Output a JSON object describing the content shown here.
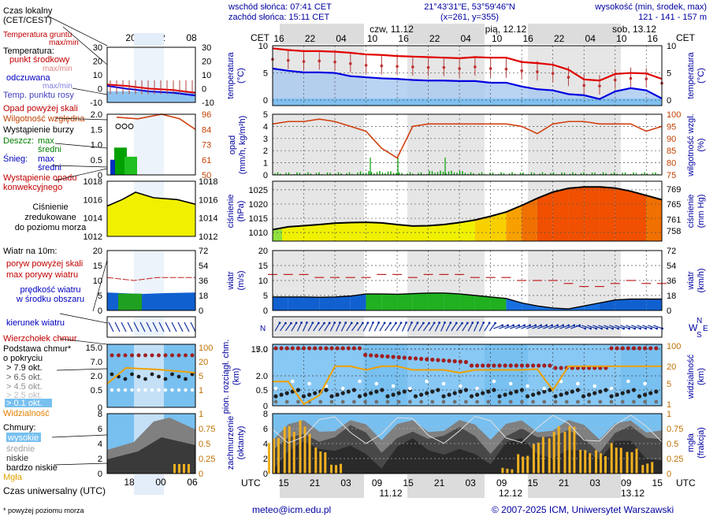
{
  "header": {
    "sunrise": "wschód słońca: 07:41 CET",
    "sunset": "zachód słońca: 15:11 CET",
    "coords": "21°43'31\"E, 53°59'46\"N",
    "grid": "(x=261, y=355)",
    "altitude_label": "wysokość (min, środek, max)",
    "altitude_values": "121 - 141 - 157 m",
    "cet_left": "CET",
    "cet_right": "CET"
  },
  "top_axis": {
    "hours": [
      "16",
      "22",
      "04",
      "10",
      "16",
      "22",
      "04",
      "10",
      "16",
      "22",
      "04",
      "10",
      "16"
    ],
    "days": [
      "czw, 11.12",
      "pią, 12.12",
      "sob, 13.12"
    ]
  },
  "bottom_axis": {
    "utc_left": "UTC",
    "utc_right": "UTC",
    "hours": [
      "15",
      "21",
      "03",
      "09",
      "15",
      "21",
      "03",
      "09",
      "15",
      "21",
      "03",
      "09",
      "15"
    ],
    "days": [
      "11.12",
      "12.12",
      "13.12"
    ]
  },
  "legend": {
    "local_time": "Czas lokalny\n(CET/CEST)",
    "local_hours": [
      "20",
      "02",
      "08"
    ],
    "utc_time": "Czas uniwersalny (UTC)",
    "utc_hours": [
      "18",
      "00",
      "06"
    ],
    "temp": {
      "ground": "Temperatura gruntu",
      "maxmin_top": "max/min",
      "temperature": "Temperatura:",
      "mid_point": "punkt środkowy",
      "maxmin": "max/min",
      "perceived": "odczuwana",
      "maxmin2": "max/min",
      "dewpoint": "Temp. punktu rosy",
      "ticks_left": [
        "30",
        "20",
        "10",
        "0",
        "-10"
      ],
      "ticks_right": [
        "30",
        "20",
        "10",
        "0",
        "-10"
      ]
    },
    "precip": {
      "above_scale": "Opad powyżej skali",
      "humidity": "Wilgotność względna",
      "storm": "Wystąpienie burzy",
      "rain": "Deszcz:",
      "max": "max",
      "mean": "średni",
      "snow": "Śnieg:",
      "max2": "max",
      "mean2": "średni",
      "occurrence": "Wystąpienie opadu\nkonwekcyjnego",
      "ticks_left": [
        "2.0",
        "1.5",
        "1.0",
        "0.5",
        "0"
      ],
      "ticks_right": [
        "96",
        "84",
        "73",
        "61",
        "50"
      ]
    },
    "pressure": {
      "label": "Ciśnienie\nzredukowane\ndo poziomu morza",
      "ticks_left": [
        "1018",
        "1016",
        "1014",
        "1012"
      ],
      "ticks_right": [
        "1018",
        "1016",
        "1014",
        "1012"
      ]
    },
    "wind": {
      "label": "Wiatr na 10m:",
      "gust_above": "poryw powyżej skali",
      "gust_max": "max porywy wiatru",
      "speed": "prędkość wiatru\nw środku obszaru",
      "ticks_left": [
        "20",
        "15",
        "10",
        "5",
        "0"
      ],
      "ticks_right": [
        "72",
        "54",
        "36",
        "18",
        "0"
      ]
    },
    "wind_dir": {
      "label": "kierunek wiatru",
      "top": "Wierzchołek chmur"
    },
    "cloud_base": {
      "label": "Podstawa chmur*\no pokryciu",
      "o79": "> 7.9 okt.",
      "o65": "> 6.5 okt.",
      "o45": "> 4.5 okt.",
      "o25": "> 2.5 okt.",
      "o01": "> 0.1 okt.",
      "visibility": "Widzialność",
      "ticks_left": [
        "15.0",
        "7.0",
        "2.0",
        "0.5",
        "0"
      ],
      "ticks_right": [
        "100",
        "20",
        "5",
        "1"
      ]
    },
    "clouds": {
      "label": "Chmury:",
      "high": "wysokie",
      "middle": "średnie",
      "low": "niskie",
      "very_low": "bardzo niskie",
      "fog": "Mgła",
      "ticks_left": [
        "8",
        "6",
        "4",
        "2",
        "0"
      ],
      "ticks_right": [
        "1",
        "0.75",
        "0.5",
        "0.25",
        "0"
      ]
    },
    "footnote": "* powyżej poziomu morza"
  },
  "panels": {
    "temp": {
      "ylabel": "temperatura\n(°C)",
      "ylabel_r": "temperatura\n(°C)",
      "ticks": [
        "10",
        "5",
        "0"
      ]
    },
    "precip": {
      "ylabel": "opad\n(mm/h, kg/m²h)",
      "ylabel_r": "wilgotność wzgl.\n(%)",
      "ticks_left": [
        "5",
        "4",
        "3",
        "2",
        "1",
        "0"
      ],
      "ticks_right": [
        "100",
        "95",
        "90",
        "85",
        "80",
        "75"
      ]
    },
    "pressure": {
      "ylabel": "ciśnienie\n(hPa)",
      "ylabel_r": "ciśnienie\n(mm Hg)",
      "ticks_left": [
        "1025",
        "1020",
        "1015",
        "1010"
      ],
      "ticks_right": [
        "769",
        "765",
        "761",
        "758"
      ]
    },
    "wind": {
      "ylabel": "wiatr\n(m/s)",
      "ylabel_r": "wiatr\n(km/h)",
      "ticks_left": [
        "20",
        "15",
        "10",
        "5",
        "0"
      ],
      "ticks_right": [
        "72",
        "54",
        "36",
        "18",
        "0"
      ]
    },
    "winddir": {
      "compass_n": "N",
      "compass_w": "W",
      "compass_s": "S",
      "compass_e": "E"
    },
    "cloudbase": {
      "ylabel": "pion. rozciągł. chm.\n(km)",
      "ylabel_r": "widzialność\n(km)",
      "ticks_left": [
        "15.0",
        "7.0",
        "2.0",
        "0.5",
        "0"
      ],
      "ticks_right": [
        "100",
        "20",
        "5",
        "1"
      ]
    },
    "clouds": {
      "ylabel": "zachmurzenie\n(oktanty)",
      "ylabel_r": "mgła\n(frakcja)",
      "ticks_left": [
        "8",
        "6",
        "4",
        "2",
        "0"
      ],
      "ticks_right": [
        "1",
        "0.75",
        "0.5",
        "0.25",
        "0"
      ]
    }
  },
  "footer": {
    "email": "meteo@icm.edu.pl",
    "copyright": "© 2007-2025 ICM, Uniwersytet Warszawski"
  },
  "colors": {
    "temp_red": "#e00000",
    "temp_blue": "#0000e0",
    "humidity": "#d04010",
    "rain_green": "#00a000",
    "pressure_yellow": "#f0f000",
    "pressure_orange": "#f08000",
    "wind_green": "#20b020",
    "wind_blue": "#1060e0",
    "cloud_sky": "#78c0f0",
    "visibility": "#f0a000"
  },
  "chart_data": [
    {
      "type": "line",
      "title": "temperatura",
      "ylabel": "temperatura (°C)",
      "ylim": [
        -1,
        10
      ],
      "x": [
        "16",
        "19",
        "22",
        "01",
        "04",
        "07",
        "10",
        "13",
        "16",
        "19",
        "22",
        "01",
        "04",
        "07",
        "10",
        "13",
        "16",
        "19",
        "22",
        "01",
        "04",
        "07",
        "10",
        "13",
        "16",
        "19"
      ],
      "series": [
        {
          "name": "max",
          "values": [
            9.5,
            9.2,
            9.0,
            9.0,
            8.9,
            8.7,
            8.4,
            8.3,
            8.1,
            8.0,
            7.9,
            7.8,
            7.7,
            7.9,
            7.8,
            7.8,
            7.0,
            6.8,
            6.5,
            5.6,
            3.8,
            3.6,
            4.8,
            5.0,
            4.9,
            3.9
          ]
        },
        {
          "name": "",
          "values": [
            7.3,
            7.1,
            6.9,
            7.0,
            6.8,
            6.5,
            6.2,
            6.1,
            6.0,
            5.9,
            5.8,
            5.8,
            5.6,
            5.9,
            5.6,
            5.5,
            5.2,
            5.0,
            4.7,
            4.0,
            2.5,
            2.4,
            3.5,
            3.8,
            3.7,
            2.9
          ]
        },
        {
          "name": "",
          "values": [
            5.8,
            5.4,
            5.1,
            5.1,
            5.0,
            4.4,
            4.2,
            4.0,
            3.9,
            3.7,
            3.6,
            3.6,
            3.5,
            3.5,
            3.2,
            3.2,
            2.5,
            2.0,
            1.8,
            1.1,
            0.9,
            0.2,
            1.6,
            2.2,
            1.8,
            0.3
          ]
        }
      ]
    },
    {
      "type": "line",
      "title": "wilgotność",
      "ylabel": "wilgotność wzgl. (%)",
      "ylim": [
        75,
        100
      ],
      "x": [
        "16",
        "19",
        "22",
        "01",
        "04",
        "07",
        "10",
        "13",
        "16",
        "19",
        "22",
        "01",
        "04",
        "07",
        "10",
        "13",
        "16",
        "19",
        "22",
        "01",
        "04",
        "07",
        "10",
        "13",
        "16",
        "19"
      ],
      "series": [
        {
          "name": "",
          "values": [
            96,
            97,
            97,
            98,
            97,
            95,
            93,
            86,
            82,
            95,
            96,
            96,
            96,
            96,
            96,
            96,
            95,
            92,
            96,
            97,
            97,
            96,
            96,
            96,
            93,
            95
          ]
        }
      ]
    },
    {
      "type": "area",
      "title": "ciśnienie",
      "ylabel": "ciśnienie (hPa)",
      "ylim": [
        1007,
        1028
      ],
      "x": [
        "16",
        "19",
        "22",
        "01",
        "04",
        "07",
        "10",
        "13",
        "16",
        "19",
        "22",
        "01",
        "04",
        "07",
        "10",
        "13",
        "16",
        "19",
        "22",
        "01",
        "04",
        "07",
        "10",
        "13",
        "16",
        "19"
      ],
      "series": [
        {
          "name": "",
          "values": [
            1011.0,
            1012.0,
            1012.4,
            1012.8,
            1013.3,
            1013.5,
            1013.6,
            1013.4,
            1012.8,
            1012.3,
            1012.4,
            1012.8,
            1013.5,
            1014.4,
            1015.7,
            1017.2,
            1019.5,
            1022.0,
            1024.2,
            1025.5,
            1026.0,
            1026.0,
            1025.6,
            1024.5,
            1023.0,
            1021.5
          ]
        }
      ]
    },
    {
      "type": "line",
      "title": "wiatr",
      "ylabel": "wiatr (m/s)",
      "ylim": [
        0,
        20
      ],
      "x": [
        "16",
        "19",
        "22",
        "01",
        "04",
        "07",
        "10",
        "13",
        "16",
        "19",
        "22",
        "01",
        "04",
        "07",
        "10",
        "13",
        "16",
        "19",
        "22",
        "01",
        "04",
        "07",
        "10",
        "13",
        "16",
        "19"
      ],
      "series": [
        {
          "name": "",
          "values": [
            12,
            12,
            12,
            11,
            11,
            11,
            11,
            12,
            12,
            11,
            12,
            12,
            12,
            11,
            11,
            11,
            10,
            10,
            10,
            9,
            8,
            8,
            9,
            10,
            9,
            9
          ]
        },
        {
          "name": "",
          "values": [
            4.5,
            4.5,
            4.5,
            4.4,
            4.5,
            4.8,
            5.5,
            5.5,
            5.4,
            5.6,
            5.8,
            5.8,
            5.5,
            5.0,
            4.5,
            4.0,
            2.5,
            1.5,
            0.8,
            0.5,
            1.5,
            2.5,
            3.5,
            3.8,
            3.8,
            3.8
          ]
        }
      ]
    },
    {
      "type": "line",
      "title": "widzialność",
      "ylabel": "widzialność (km)",
      "ylim": [
        0,
        100
      ],
      "x": [
        "16",
        "19",
        "22",
        "01",
        "04",
        "07",
        "10",
        "13",
        "16",
        "19",
        "22",
        "01",
        "04",
        "07",
        "10",
        "13",
        "16",
        "19",
        "22",
        "01",
        "04",
        "07",
        "10",
        "13",
        "16",
        "19"
      ],
      "series": [
        {
          "name": "",
          "values": [
            6,
            6,
            1,
            2,
            20,
            20,
            15,
            20,
            20,
            15,
            15,
            15,
            12,
            15,
            15,
            15,
            15,
            16,
            3,
            20,
            20,
            20,
            20,
            20,
            20,
            20
          ]
        }
      ]
    },
    {
      "type": "bar",
      "title": "mgła",
      "ylabel": "mgła (frakcja)",
      "ylim": [
        0,
        1
      ],
      "x": [
        "16",
        "19",
        "22",
        "01",
        "04",
        "07",
        "10",
        "13",
        "16",
        "19",
        "22",
        "01",
        "04",
        "07",
        "10",
        "13",
        "16",
        "19",
        "22",
        "01",
        "04",
        "07",
        "10",
        "13",
        "16",
        "19"
      ],
      "values": [
        0.6,
        0.8,
        0.9,
        0.5,
        0.2,
        0.0,
        0.0,
        0.0,
        0.0,
        0.0,
        0.0,
        0.0,
        0.0,
        0.0,
        0.0,
        0.1,
        0.4,
        0.7,
        0.8,
        0.8,
        0.4,
        0.4,
        0.6,
        0.5,
        0.2,
        0.0
      ]
    }
  ]
}
